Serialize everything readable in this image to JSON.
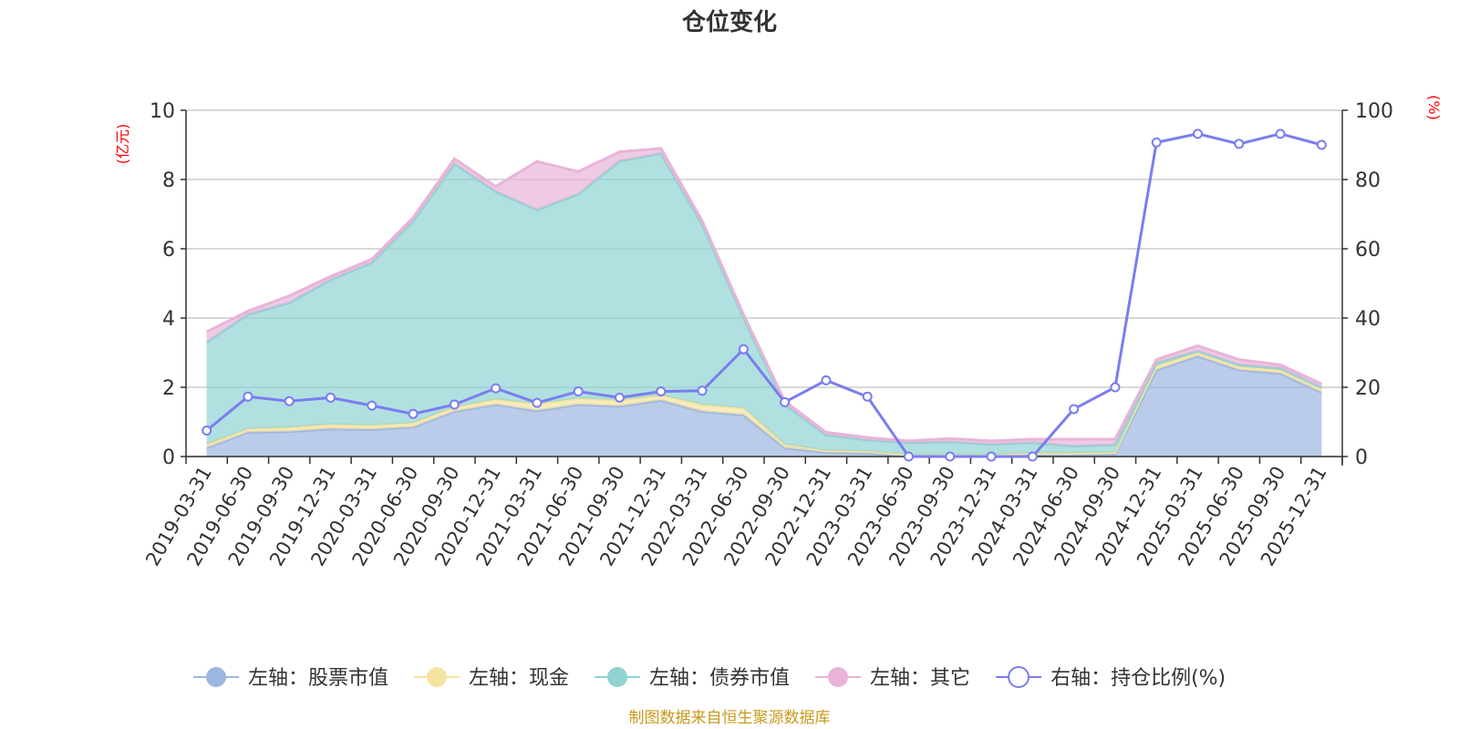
{
  "chart_data": {
    "type": "area",
    "title": "仓位变化",
    "left_unit": "(亿元)",
    "right_unit": "(%)",
    "left_ylim": [
      0,
      10
    ],
    "left_ticks": [
      "0",
      "2",
      "4",
      "6",
      "8",
      "10"
    ],
    "right_ylim": [
      0,
      100
    ],
    "right_ticks": [
      "0",
      "20",
      "40",
      "60",
      "80",
      "100"
    ],
    "grid": true,
    "legend_position": "bottom",
    "categories": [
      "2019-03-31",
      "2019-06-30",
      "2019-09-30",
      "2019-12-31",
      "2020-03-31",
      "2020-06-30",
      "2020-09-30",
      "2020-12-31",
      "2021-03-31",
      "2021-06-30",
      "2021-09-30",
      "2021-12-31",
      "2022-03-31",
      "2022-06-30",
      "2022-09-30",
      "2022-12-31",
      "2023-03-31",
      "2023-06-30",
      "2023-09-30",
      "2023-12-31",
      "2024-03-31",
      "2024-06-30",
      "2024-09-30",
      "2024-12-31",
      "2025-03-31",
      "2025-06-30",
      "2025-09-30",
      "2025-12-31"
    ],
    "stacked_series": [
      {
        "name": "左轴：股票市值",
        "color": "#9db6e0",
        "values": [
          0.25,
          0.7,
          0.72,
          0.8,
          0.78,
          0.85,
          1.3,
          1.5,
          1.32,
          1.5,
          1.45,
          1.62,
          1.3,
          1.2,
          0.25,
          0.12,
          0.1,
          0.02,
          0.02,
          0.02,
          0.05,
          0.05,
          0.07,
          2.5,
          2.9,
          2.5,
          2.4,
          1.85
        ]
      },
      {
        "name": "左轴：现金",
        "color": "#f5e3a0",
        "values": [
          0.1,
          0.1,
          0.12,
          0.13,
          0.12,
          0.12,
          0.12,
          0.15,
          0.2,
          0.18,
          0.18,
          0.15,
          0.2,
          0.2,
          0.1,
          0.05,
          0.05,
          0.03,
          0.03,
          0.03,
          0.05,
          0.05,
          0.05,
          0.12,
          0.1,
          0.1,
          0.1,
          0.1
        ]
      },
      {
        "name": "左轴：债券市值",
        "color": "#8fd3d3",
        "values": [
          2.95,
          3.3,
          3.6,
          4.17,
          4.7,
          5.83,
          7.03,
          6.0,
          5.6,
          5.9,
          6.9,
          6.98,
          5.2,
          2.6,
          1.15,
          0.45,
          0.33,
          0.35,
          0.37,
          0.3,
          0.3,
          0.2,
          0.22,
          0.08,
          0.05,
          0.05,
          0.05,
          0.05
        ]
      },
      {
        "name": "左轴：其它",
        "color": "#e8b4d8",
        "values": [
          0.3,
          0.1,
          0.2,
          0.1,
          0.1,
          0.1,
          0.15,
          0.15,
          1.4,
          0.65,
          0.27,
          0.15,
          0.1,
          0.1,
          0.1,
          0.08,
          0.07,
          0.05,
          0.1,
          0.1,
          0.1,
          0.2,
          0.16,
          0.1,
          0.15,
          0.15,
          0.1,
          0.1
        ]
      }
    ],
    "line_series": {
      "name": "右轴：持仓比例(%)",
      "color": "#7a7df0",
      "values": [
        7.5,
        17.3,
        16,
        17,
        14.7,
        12.3,
        15,
        19.7,
        15.5,
        18.8,
        17,
        18.8,
        19,
        31,
        15.7,
        22,
        17.3,
        0,
        0,
        0,
        0,
        13.7,
        20,
        90.7,
        93.2,
        90.3,
        93.2,
        90
      ]
    }
  },
  "source_text": "制图数据来自恒生聚源数据库"
}
